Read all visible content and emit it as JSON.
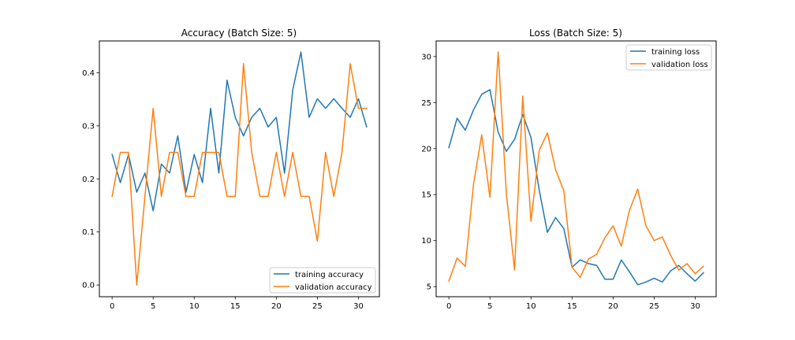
{
  "chart_data": [
    {
      "type": "line",
      "title": "Accuracy (Batch Size: 5)",
      "xlabel": "",
      "ylabel": "",
      "xlim": [
        -1.55,
        32.55
      ],
      "ylim": [
        -0.022,
        0.46
      ],
      "xticks": [
        0,
        5,
        10,
        15,
        20,
        25,
        30
      ],
      "yticks": [
        0.0,
        0.1,
        0.2,
        0.3,
        0.4
      ],
      "ytick_labels": [
        "0.0",
        "0.1",
        "0.2",
        "0.3",
        "0.4"
      ],
      "legend_position": "lower-right",
      "grid": false,
      "x": [
        0,
        1,
        2,
        3,
        4,
        5,
        6,
        7,
        8,
        9,
        10,
        11,
        12,
        13,
        14,
        15,
        16,
        17,
        18,
        19,
        20,
        21,
        22,
        23,
        24,
        25,
        26,
        27,
        28,
        29,
        30,
        31
      ],
      "series": [
        {
          "name": "training accuracy",
          "color": "#1f77b4",
          "values": [
            0.246,
            0.193,
            0.246,
            0.175,
            0.211,
            0.14,
            0.228,
            0.211,
            0.281,
            0.175,
            0.246,
            0.193,
            0.333,
            0.211,
            0.386,
            0.316,
            0.281,
            0.316,
            0.333,
            0.298,
            0.316,
            0.211,
            0.368,
            0.439,
            0.316,
            0.351,
            0.333,
            0.351,
            0.333,
            0.316,
            0.351,
            0.298
          ]
        },
        {
          "name": "validation accuracy",
          "color": "#ff7f0e",
          "values": [
            0.167,
            0.25,
            0.25,
            0.0,
            0.167,
            0.333,
            0.167,
            0.25,
            0.25,
            0.167,
            0.167,
            0.25,
            0.25,
            0.25,
            0.167,
            0.167,
            0.417,
            0.25,
            0.167,
            0.167,
            0.25,
            0.167,
            0.25,
            0.167,
            0.167,
            0.083,
            0.25,
            0.167,
            0.25,
            0.417,
            0.333,
            0.333
          ]
        }
      ]
    },
    {
      "type": "line",
      "title": "Loss (Batch Size: 5)",
      "xlabel": "",
      "ylabel": "",
      "xlim": [
        -1.55,
        32.55
      ],
      "ylim": [
        3.9,
        31.7
      ],
      "xticks": [
        0,
        5,
        10,
        15,
        20,
        25,
        30
      ],
      "yticks": [
        5,
        10,
        15,
        20,
        25,
        30
      ],
      "ytick_labels": [
        "5",
        "10",
        "15",
        "20",
        "25",
        "30"
      ],
      "legend_position": "upper-right",
      "grid": false,
      "x": [
        0,
        1,
        2,
        3,
        4,
        5,
        6,
        7,
        8,
        9,
        10,
        11,
        12,
        13,
        14,
        15,
        16,
        17,
        18,
        19,
        20,
        21,
        22,
        23,
        24,
        25,
        26,
        27,
        28,
        29,
        30,
        31
      ],
      "series": [
        {
          "name": "training loss",
          "color": "#1f77b4",
          "values": [
            20.1,
            23.3,
            22.0,
            24.2,
            25.9,
            26.4,
            21.8,
            19.7,
            21.0,
            23.7,
            21.2,
            15.5,
            10.9,
            12.5,
            11.3,
            7.1,
            7.9,
            7.5,
            7.3,
            5.8,
            5.8,
            7.9,
            6.6,
            5.2,
            5.5,
            5.9,
            5.5,
            6.7,
            7.3,
            6.4,
            5.6,
            6.5
          ]
        },
        {
          "name": "validation loss",
          "color": "#ff7f0e",
          "values": [
            5.6,
            8.1,
            7.2,
            16.1,
            21.5,
            14.7,
            30.5,
            15.1,
            6.8,
            25.7,
            12.1,
            19.8,
            21.7,
            17.7,
            15.4,
            7.1,
            6.0,
            8.0,
            8.5,
            10.3,
            11.6,
            9.4,
            13.3,
            15.6,
            11.6,
            10.0,
            10.4,
            8.4,
            6.8,
            7.5,
            6.4,
            7.2
          ]
        }
      ]
    }
  ]
}
